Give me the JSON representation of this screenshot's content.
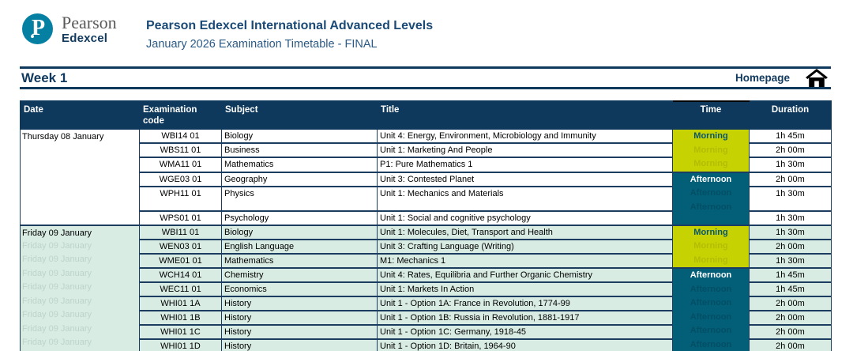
{
  "header": {
    "brand_name": "Pearson",
    "brand_sub": "Edexcel",
    "logo_glyph": "P",
    "title": "Pearson Edexcel International Advanced Levels",
    "subtitle": "January 2026 Examination Timetable - FINAL"
  },
  "week_bar": {
    "label": "Week 1",
    "homepage_label": "Homepage",
    "home_icon": "home-icon"
  },
  "colors": {
    "header_navy": "#0e395c",
    "band_navy": "#143a5e",
    "morning_lime": "#c7d203",
    "afternoon_teal": "#035e78",
    "friday_mint": "#d9ece4",
    "brand_teal": "#0680a2"
  },
  "table": {
    "columns": [
      "Date",
      "Examination code",
      "Subject",
      "Title",
      "Time",
      "Duration"
    ],
    "days": [
      {
        "date": "Thursday 08 January",
        "shade": "white",
        "ghost_dates": false,
        "rows": [
          {
            "code": "WBI14 01",
            "subject": "Biology",
            "title": "Unit 4: Energy, Environment, Microbiology and Immunity",
            "time": "Morning",
            "time_span": 3,
            "duration": "1h 45m"
          },
          {
            "code": "WBS11 01",
            "subject": "Business",
            "title": "Unit 1: Marketing And People",
            "duration": "2h 00m"
          },
          {
            "code": "WMA11 01",
            "subject": "Mathematics",
            "title": "P1: Pure Mathematics 1",
            "duration": "1h 30m"
          },
          {
            "code": "WGE03 01",
            "subject": "Geography",
            "title": "Unit 3: Contested Planet",
            "time": "Afternoon",
            "time_span": 3,
            "duration": "2h 00m"
          },
          {
            "code": "WPH11 01",
            "subject": "Physics",
            "title": "Unit 1: Mechanics and Materials",
            "duration": "1h 30m",
            "tall": true
          },
          {
            "code": "WPS01 01",
            "subject": "Psychology",
            "title": "Unit 1: Social and cognitive psychology",
            "duration": "1h 30m"
          }
        ]
      },
      {
        "date": "Friday 09 January",
        "shade": "mint",
        "ghost_dates": true,
        "rows": [
          {
            "code": "WBI11 01",
            "subject": "Biology",
            "title": "Unit 1: Molecules, Diet, Transport and Health",
            "time": "Morning",
            "time_span": 3,
            "duration": "1h 30m"
          },
          {
            "code": "WEN03 01",
            "subject": "English Language",
            "title": "Unit 3: Crafting Language (Writing)",
            "duration": "2h 00m"
          },
          {
            "code": "WME01 01",
            "subject": "Mathematics",
            "title": "M1: Mechanics 1",
            "duration": "1h 30m"
          },
          {
            "code": "WCH14 01",
            "subject": "Chemistry",
            "title": "Unit 4: Rates, Equilibria and Further Organic Chemistry",
            "time": "Afternoon",
            "time_span": 6,
            "duration": "1h 45m"
          },
          {
            "code": "WEC11 01",
            "subject": "Economics",
            "title": "Unit 1: Markets In Action",
            "duration": "1h 45m"
          },
          {
            "code": "WHI01 1A",
            "subject": "History",
            "title": "Unit 1 - Option 1A: France in Revolution, 1774-99",
            "duration": "2h 00m"
          },
          {
            "code": "WHI01 1B",
            "subject": "History",
            "title": "Unit 1 - Option 1B: Russia in Revolution, 1881-1917",
            "duration": "2h 00m"
          },
          {
            "code": "WHI01 1C",
            "subject": "History",
            "title": "Unit 1 - Option 1C: Germany, 1918-45",
            "duration": "2h 00m"
          },
          {
            "code": "WHI01 1D",
            "subject": "History",
            "title": "Unit 1 - Option 1D: Britain, 1964-90",
            "duration": "2h 00m"
          }
        ]
      }
    ]
  }
}
